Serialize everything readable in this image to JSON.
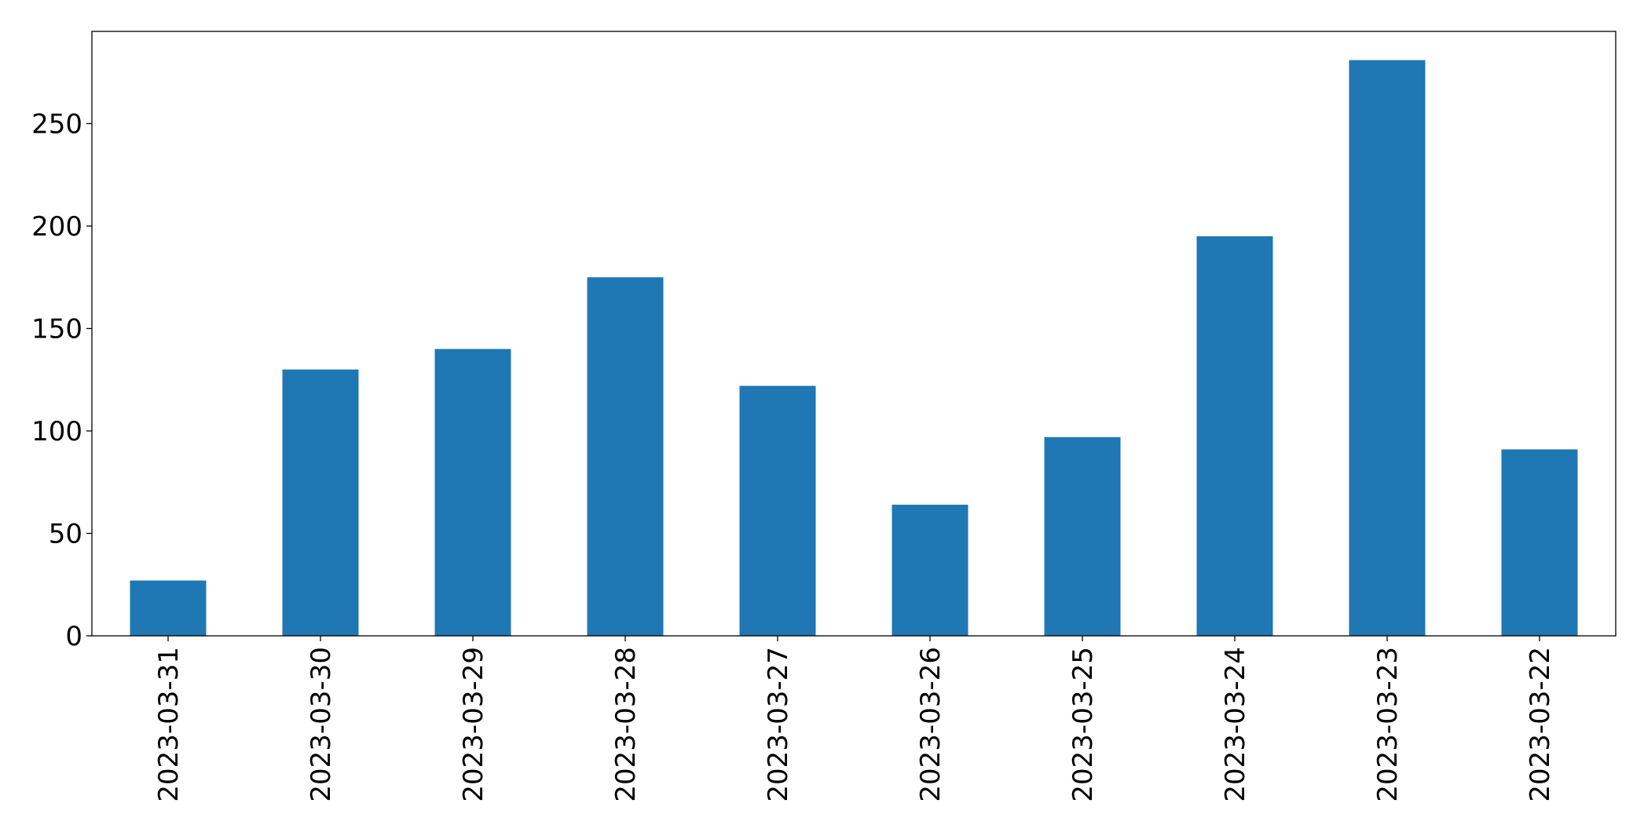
{
  "chart_data": {
    "type": "bar",
    "categories": [
      "2023-03-31",
      "2023-03-30",
      "2023-03-29",
      "2023-03-28",
      "2023-03-27",
      "2023-03-26",
      "2023-03-25",
      "2023-03-24",
      "2023-03-23",
      "2023-03-22"
    ],
    "values": [
      27,
      130,
      140,
      175,
      122,
      64,
      97,
      195,
      281,
      91
    ],
    "title": "",
    "xlabel": "",
    "ylabel": "",
    "ylim": [
      0,
      295
    ],
    "yticks": [
      0,
      50,
      100,
      150,
      200,
      250
    ],
    "xtick_rotation": "vertical",
    "grid": false,
    "legend": "none",
    "colors": {
      "bar": "#1f77b4",
      "axes": "#000000",
      "background": "#ffffff"
    }
  }
}
